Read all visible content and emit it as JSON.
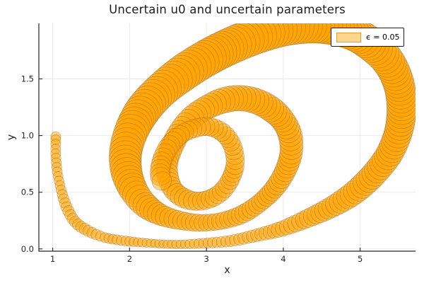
{
  "figure": {
    "background": "#ffffff"
  },
  "chart_data": {
    "type": "area",
    "subtype": "uncertainty-tube-phase-plot",
    "title": "Uncertain u0 and uncertain parameters",
    "xlabel": "x",
    "ylabel": "y",
    "xlim": [
      0.82,
      5.72
    ],
    "ylim": [
      -0.02,
      1.99
    ],
    "xticks": {
      "values": [
        1,
        2,
        3,
        4,
        5
      ],
      "labels": [
        "1",
        "2",
        "3",
        "4",
        "5"
      ]
    },
    "yticks": {
      "values": [
        0,
        0.5,
        1,
        1.5
      ],
      "labels": [
        "0.0",
        "0.5",
        "1.0",
        "1.5"
      ]
    },
    "grid": true,
    "legend": {
      "position": "top-right",
      "entries": [
        {
          "label": "ϵ = 0.05",
          "swatch_fill": "#FFD68E",
          "swatch_stroke": "#E29E33"
        }
      ]
    },
    "colors": {
      "band_fill": "#FFA405",
      "band_fill_opacity": 0.45,
      "band_stroke": "#A56508",
      "band_stroke_opacity": 0.6,
      "grid": "#E8E8E8",
      "axis": "#262626",
      "text": "#262626"
    },
    "series": [
      {
        "name": "ϵ = 0.05",
        "kind": "trajectory-with-uncertainty-polygons",
        "start_point": [
          1.04,
          0.99
        ],
        "end_point": [
          2.42,
          0.6
        ],
        "points": [
          [
            1.04,
            0.99,
            7
          ],
          [
            1.04,
            0.84,
            7
          ],
          [
            1.06,
            0.68,
            7
          ],
          [
            1.11,
            0.52,
            7
          ],
          [
            1.18,
            0.37,
            8
          ],
          [
            1.29,
            0.24,
            8
          ],
          [
            1.46,
            0.16,
            8
          ],
          [
            1.68,
            0.1,
            7
          ],
          [
            1.95,
            0.07,
            7
          ],
          [
            2.28,
            0.05,
            6
          ],
          [
            2.61,
            0.04,
            6
          ],
          [
            2.96,
            0.05,
            7
          ],
          [
            3.31,
            0.07,
            8
          ],
          [
            3.65,
            0.12,
            9
          ],
          [
            3.99,
            0.18,
            11
          ],
          [
            4.32,
            0.27,
            13
          ],
          [
            4.63,
            0.37,
            15
          ],
          [
            4.93,
            0.5,
            17
          ],
          [
            5.18,
            0.66,
            18
          ],
          [
            5.38,
            0.84,
            19
          ],
          [
            5.5,
            1.04,
            20
          ],
          [
            5.54,
            1.25,
            21
          ],
          [
            5.5,
            1.46,
            22
          ],
          [
            5.37,
            1.65,
            23
          ],
          [
            5.17,
            1.79,
            24
          ],
          [
            4.91,
            1.9,
            24
          ],
          [
            4.61,
            1.96,
            25
          ],
          [
            4.3,
            1.97,
            25
          ],
          [
            3.97,
            1.94,
            25
          ],
          [
            3.64,
            1.88,
            26
          ],
          [
            3.31,
            1.79,
            26
          ],
          [
            2.99,
            1.68,
            26
          ],
          [
            2.69,
            1.55,
            26
          ],
          [
            2.41,
            1.4,
            25
          ],
          [
            2.18,
            1.23,
            25
          ],
          [
            2.03,
            1.05,
            24
          ],
          [
            1.95,
            0.86,
            23
          ],
          [
            1.96,
            0.68,
            22
          ],
          [
            2.05,
            0.52,
            20
          ],
          [
            2.2,
            0.39,
            18
          ],
          [
            2.41,
            0.3,
            15
          ],
          [
            2.67,
            0.25,
            13
          ],
          [
            2.94,
            0.23,
            12
          ],
          [
            3.22,
            0.25,
            12
          ],
          [
            3.48,
            0.31,
            13
          ],
          [
            3.7,
            0.41,
            13
          ],
          [
            3.88,
            0.53,
            14
          ],
          [
            4.02,
            0.68,
            15
          ],
          [
            4.1,
            0.84,
            16
          ],
          [
            4.09,
            1.0,
            17
          ],
          [
            4.0,
            1.13,
            17
          ],
          [
            3.85,
            1.23,
            18
          ],
          [
            3.66,
            1.3,
            18
          ],
          [
            3.44,
            1.33,
            18
          ],
          [
            3.22,
            1.31,
            18
          ],
          [
            3.01,
            1.25,
            17
          ],
          [
            2.82,
            1.16,
            17
          ],
          [
            2.66,
            1.04,
            16
          ],
          [
            2.55,
            0.9,
            16
          ],
          [
            2.49,
            0.76,
            15
          ],
          [
            2.5,
            0.63,
            15
          ],
          [
            2.57,
            0.52,
            14
          ],
          [
            2.7,
            0.45,
            14
          ],
          [
            2.87,
            0.42,
            13
          ],
          [
            3.04,
            0.44,
            13
          ],
          [
            3.19,
            0.5,
            13
          ],
          [
            3.3,
            0.6,
            13
          ],
          [
            3.37,
            0.73,
            13
          ],
          [
            3.36,
            0.86,
            13
          ],
          [
            3.29,
            0.97,
            13
          ],
          [
            3.16,
            1.05,
            13
          ],
          [
            3.0,
            1.08,
            13
          ],
          [
            2.83,
            1.06,
            13
          ],
          [
            2.67,
            1.01,
            13
          ],
          [
            2.53,
            0.92,
            14
          ],
          [
            2.44,
            0.81,
            14
          ],
          [
            2.4,
            0.71,
            14
          ],
          [
            2.4,
            0.64,
            14
          ],
          [
            2.42,
            0.6,
            14
          ]
        ],
        "points_format": [
          "x",
          "y",
          "band_half_width_px"
        ]
      }
    ]
  }
}
